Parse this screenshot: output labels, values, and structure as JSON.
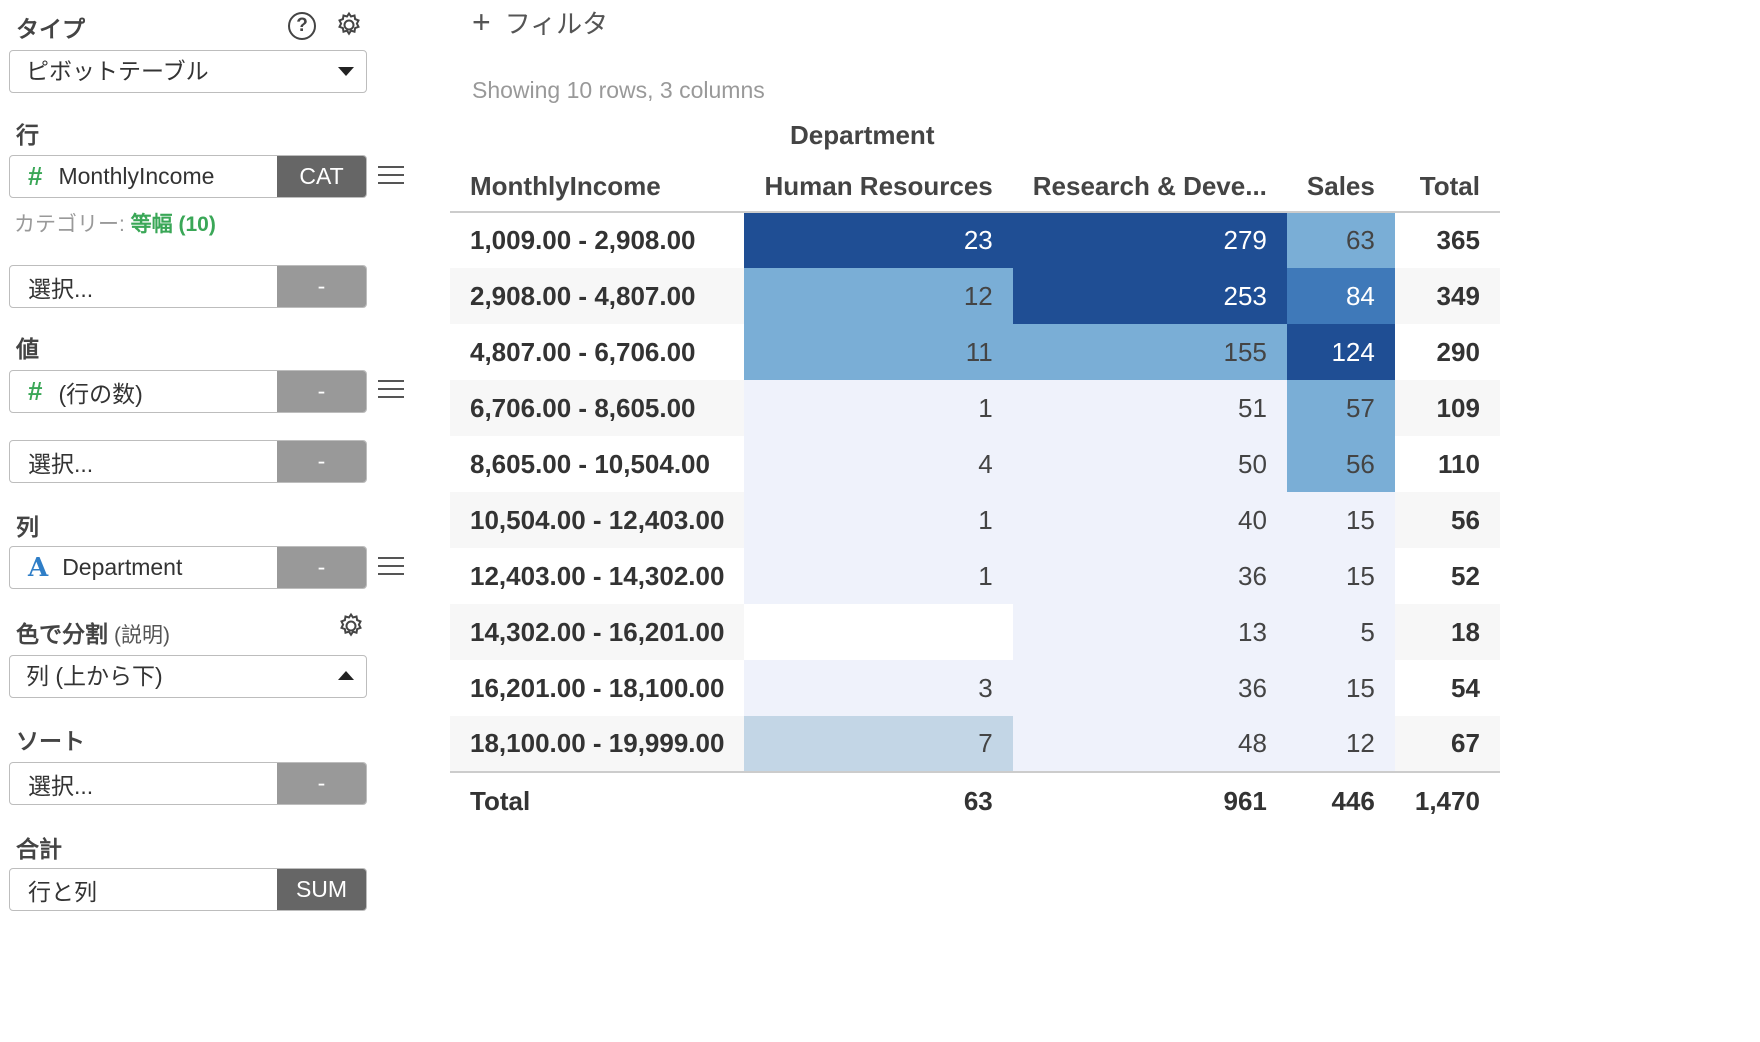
{
  "panel": {
    "type_label": "タイプ",
    "type_value": "ピボットテーブル",
    "rows_label": "行",
    "rows_field": {
      "name": "MonthlyIncome",
      "tag": "CAT"
    },
    "category_note_prefix": "カテゴリー: ",
    "category_note_value": "等幅 (10)",
    "rows_select_placeholder": "選択...",
    "rows_select_tag": "-",
    "values_label": "値",
    "values_field": {
      "name": "(行の数)",
      "tag": "-"
    },
    "values_select_placeholder": "選択...",
    "values_select_tag": "-",
    "columns_label": "列",
    "columns_field": {
      "name": "Department",
      "tag": "-"
    },
    "color_label": "色で分割",
    "color_sub": "(説明)",
    "color_value": "列 (上から下)",
    "sort_label": "ソート",
    "sort_placeholder": "選択...",
    "sort_tag": "-",
    "total_label": "合計",
    "total_value": "行と列",
    "total_tag": "SUM"
  },
  "main": {
    "filter_label": "フィルタ",
    "showing": "Showing 10 rows, 3 columns"
  },
  "pivot": {
    "column_group": "Department",
    "row_header": "MonthlyIncome",
    "columns": [
      "Human Resources",
      "Research & Deve...",
      "Sales",
      "Total"
    ],
    "rows": [
      {
        "label": "1,009.00 - 2,908.00",
        "hr": "23",
        "rd": "279",
        "sales": "63",
        "total": "365"
      },
      {
        "label": "2,908.00 - 4,807.00",
        "hr": "12",
        "rd": "253",
        "sales": "84",
        "total": "349"
      },
      {
        "label": "4,807.00 - 6,706.00",
        "hr": "11",
        "rd": "155",
        "sales": "124",
        "total": "290"
      },
      {
        "label": "6,706.00 - 8,605.00",
        "hr": "1",
        "rd": "51",
        "sales": "57",
        "total": "109"
      },
      {
        "label": "8,605.00 - 10,504.00",
        "hr": "4",
        "rd": "50",
        "sales": "56",
        "total": "110"
      },
      {
        "label": "10,504.00 - 12,403.00",
        "hr": "1",
        "rd": "40",
        "sales": "15",
        "total": "56"
      },
      {
        "label": "12,403.00 - 14,302.00",
        "hr": "1",
        "rd": "36",
        "sales": "15",
        "total": "52"
      },
      {
        "label": "14,302.00 - 16,201.00",
        "hr": "",
        "rd": "13",
        "sales": "5",
        "total": "18"
      },
      {
        "label": "16,201.00 - 18,100.00",
        "hr": "3",
        "rd": "36",
        "sales": "15",
        "total": "54"
      },
      {
        "label": "18,100.00 - 19,999.00",
        "hr": "7",
        "rd": "48",
        "sales": "12",
        "total": "67"
      }
    ],
    "footer": {
      "label": "Total",
      "hr": "63",
      "rd": "961",
      "sales": "446",
      "total": "1,470"
    },
    "colors": {
      "dark": "#1f4e94",
      "medium": "#3f79b9",
      "light": "#7aaed6",
      "pale": "#c3d6e6",
      "faint": "#eff2fb"
    }
  }
}
